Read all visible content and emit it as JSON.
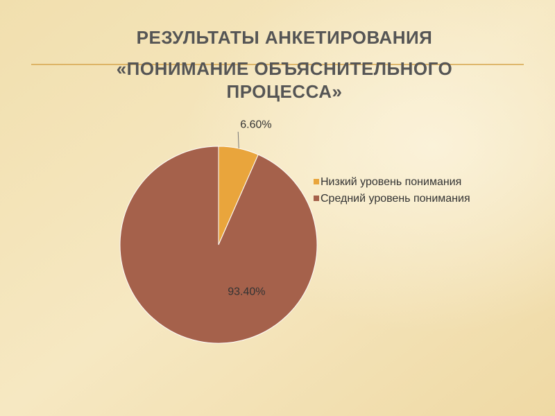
{
  "chart_data": {
    "type": "pie",
    "title": [
      "РЕЗУЛЬТАТЫ АНКЕТИРОВАНИЯ",
      "«ПОНИМАНИЕ ОБЪЯСНИТЕЛЬНОГО",
      "ПРОЦЕССА»"
    ],
    "categories": [
      "Низкий уровень понимания",
      "Средний уровень понимания"
    ],
    "values": [
      6.6,
      93.4
    ],
    "value_labels": [
      "6.60%",
      "93.40%"
    ],
    "colors": [
      "#e9a53c",
      "#a5614b"
    ],
    "legend": "right"
  }
}
